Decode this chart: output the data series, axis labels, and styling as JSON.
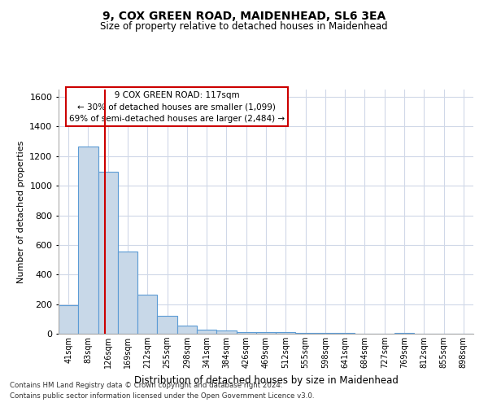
{
  "title1": "9, COX GREEN ROAD, MAIDENHEAD, SL6 3EA",
  "title2": "Size of property relative to detached houses in Maidenhead",
  "xlabel": "Distribution of detached houses by size in Maidenhead",
  "ylabel": "Number of detached properties",
  "footer1": "Contains HM Land Registry data © Crown copyright and database right 2024.",
  "footer2": "Contains public sector information licensed under the Open Government Licence v3.0.",
  "annotation_title": "9 COX GREEN ROAD: 117sqm",
  "annotation_line2": "← 30% of detached houses are smaller (1,099)",
  "annotation_line3": "69% of semi-detached houses are larger (2,484) →",
  "bar_color": "#c8d8e8",
  "bar_edge_color": "#5b9bd5",
  "redline_color": "#cc0000",
  "grid_color": "#d0d8e8",
  "bin_labels": [
    "41sqm",
    "83sqm",
    "126sqm",
    "169sqm",
    "212sqm",
    "255sqm",
    "298sqm",
    "341sqm",
    "384sqm",
    "426sqm",
    "469sqm",
    "512sqm",
    "555sqm",
    "598sqm",
    "641sqm",
    "684sqm",
    "727sqm",
    "769sqm",
    "812sqm",
    "855sqm",
    "898sqm"
  ],
  "bar_heights": [
    195,
    1265,
    1095,
    555,
    265,
    120,
    55,
    30,
    20,
    10,
    10,
    10,
    5,
    5,
    5,
    0,
    0,
    5,
    0,
    0,
    0
  ],
  "ylim": [
    0,
    1650
  ],
  "yticks": [
    0,
    200,
    400,
    600,
    800,
    1000,
    1200,
    1400,
    1600
  ],
  "redline_x": 1.85,
  "figsize": [
    6.0,
    5.0
  ],
  "dpi": 100
}
